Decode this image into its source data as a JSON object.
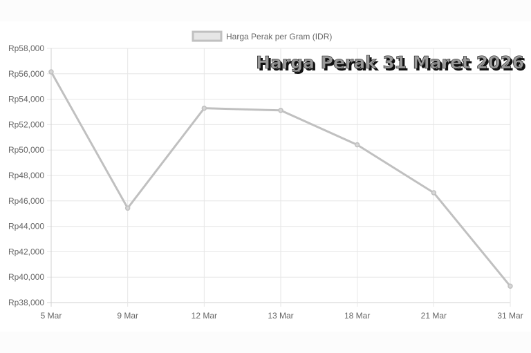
{
  "chart_data": {
    "type": "line",
    "title": "",
    "overlay_text": "Harga Perak 31 Maret 2026",
    "xlabel": "",
    "ylabel": "",
    "categories": [
      "5 Mar",
      "9 Mar",
      "12 Mar",
      "13 Mar",
      "18 Mar",
      "21 Mar",
      "31 Mar"
    ],
    "series": [
      {
        "name": "Harga Perak per Gram (IDR)",
        "values": [
          56150,
          45430,
          53290,
          53120,
          50410,
          46640,
          39290
        ],
        "color": "#c0c0c0"
      }
    ],
    "ylim": [
      38000,
      58000
    ],
    "ystep": 2000,
    "ytick_labels": [
      "Rp38,000",
      "Rp40,000",
      "Rp42,000",
      "Rp44,000",
      "Rp46,000",
      "Rp48,000",
      "Rp50,000",
      "Rp52,000",
      "Rp54,000",
      "Rp56,000",
      "Rp58,000"
    ],
    "grid": true,
    "legend_position": "top-center",
    "colors": {
      "grid": "#e6e6e6",
      "text": "#666666",
      "line": "#c0c0c0"
    }
  }
}
